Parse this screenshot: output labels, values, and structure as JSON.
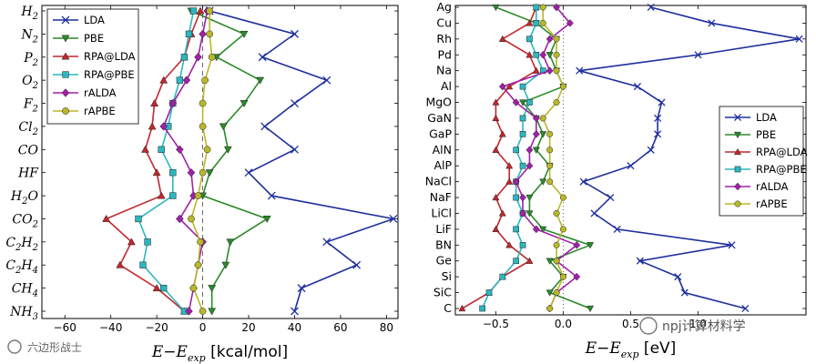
{
  "watermarks": {
    "left": "六边形战士",
    "right": "npj计算材料学"
  },
  "chart_data": [
    {
      "type": "line",
      "xlabel_main": "E−E",
      "xlabel_sub": "exp",
      "xlabel_unit": " [kcal/mol]",
      "xlim": [
        -70,
        85
      ],
      "xticks": [
        -60,
        -40,
        -20,
        0,
        20,
        40,
        60,
        80
      ],
      "xtick_labels": [
        "−60",
        "−40",
        "−20",
        "0",
        "20",
        "40",
        "60",
        "80"
      ],
      "legend_position": "top-left",
      "categories": [
        "H2",
        "N2",
        "P2",
        "O2",
        "F2",
        "Cl2",
        "CO",
        "HF",
        "H2O",
        "CO2",
        "C2H2",
        "C2H4",
        "CH4",
        "NH3"
      ],
      "category_labels": [
        {
          "base": "H",
          "sub": "2"
        },
        {
          "base": "N",
          "sub": "2"
        },
        {
          "base": "P",
          "sub": "2"
        },
        {
          "base": "O",
          "sub": "2"
        },
        {
          "base": "F",
          "sub": "2"
        },
        {
          "base": "Cl",
          "sub": "2"
        },
        {
          "base": "CO",
          "sub": ""
        },
        {
          "base": "HF",
          "sub": ""
        },
        {
          "base": "H",
          "sub": "2",
          "tail": "O"
        },
        {
          "base": "CO",
          "sub": "2"
        },
        {
          "base": "C",
          "sub": "2",
          "tail": "H",
          "sub2": "2"
        },
        {
          "base": "C",
          "sub": "2",
          "tail": "H",
          "sub2": "4"
        },
        {
          "base": "CH",
          "sub": "4"
        },
        {
          "base": "NH",
          "sub": "3"
        }
      ],
      "series": [
        {
          "name": "LDA",
          "color": "#1f2f9e",
          "marker": "x",
          "values": [
            3,
            40,
            26,
            54,
            40,
            27,
            40,
            20,
            30,
            83,
            54,
            67,
            43,
            40
          ]
        },
        {
          "name": "PBE",
          "color": "#2a8a2a",
          "marker": "tri_down",
          "values": [
            -5,
            18,
            6,
            25,
            18,
            9,
            11,
            3,
            0,
            28,
            12,
            10,
            4,
            4
          ]
        },
        {
          "name": "RPA@LDA",
          "color": "#c0282d",
          "marker": "tri_up",
          "values": [
            -1,
            -5,
            -8,
            -17,
            -21,
            -22,
            -25,
            -20,
            -18,
            -42,
            -31,
            -36,
            -20,
            -8
          ]
        },
        {
          "name": "RPA@PBE",
          "color": "#2cb7bf",
          "marker": "square",
          "values": [
            -4,
            -6,
            -8,
            -10,
            -13,
            -15,
            -18,
            -13,
            -13,
            -28,
            -24,
            -26,
            -17,
            -8
          ]
        },
        {
          "name": "rALDA",
          "color": "#a020a8",
          "marker": "diamond",
          "values": [
            2,
            0,
            -2,
            -7,
            -13,
            -17,
            -10,
            -5,
            -4,
            -10,
            0,
            -2,
            -4,
            -6
          ]
        },
        {
          "name": "rAPBE",
          "color": "#b8b82a",
          "marker": "circle",
          "values": [
            3,
            3,
            4,
            1,
            0,
            0,
            2,
            0,
            -2,
            -5,
            -1,
            -2,
            -4,
            0
          ]
        }
      ]
    },
    {
      "type": "line",
      "xlabel_main": "E−E",
      "xlabel_sub": "exp",
      "xlabel_unit": " [eV]",
      "xlim": [
        -0.8,
        1.8
      ],
      "xticks": [
        -0.5,
        0.0,
        0.5,
        1.0
      ],
      "xtick_labels": [
        "−0.5",
        "0.0",
        "0.5",
        "1.0"
      ],
      "legend_position": "center-right",
      "categories": [
        "Ag",
        "Cu",
        "Rh",
        "Pd",
        "Na",
        "Al",
        "MgO",
        "GaN",
        "GaP",
        "AlN",
        "AlP",
        "NaCl",
        "NaF",
        "LiCl",
        "LiF",
        "BN",
        "Ge",
        "Si",
        "SiC",
        "C"
      ],
      "series": [
        {
          "name": "LDA",
          "color": "#1f2f9e",
          "marker": "x",
          "values": [
            0.65,
            1.1,
            1.75,
            1.0,
            0.12,
            0.55,
            0.73,
            0.7,
            0.7,
            0.65,
            0.5,
            0.15,
            0.35,
            0.23,
            0.4,
            1.25,
            0.57,
            0.85,
            0.9,
            1.35
          ]
        },
        {
          "name": "PBE",
          "color": "#2a8a2a",
          "marker": "tri_down",
          "values": [
            -0.5,
            -0.2,
            -0.05,
            -0.1,
            -0.05,
            0.0,
            -0.3,
            -0.2,
            -0.15,
            -0.2,
            -0.1,
            -0.15,
            -0.25,
            -0.25,
            -0.15,
            0.2,
            -0.1,
            0.0,
            -0.1,
            0.2
          ]
        },
        {
          "name": "RPA@LDA",
          "color": "#c0282d",
          "marker": "tri_up",
          "values": [
            -0.2,
            -0.25,
            -0.45,
            -0.25,
            -0.2,
            -0.4,
            -0.5,
            -0.5,
            -0.45,
            -0.5,
            -0.4,
            -0.4,
            -0.5,
            -0.45,
            -0.5,
            -0.4,
            -0.25,
            -0.45,
            -0.55,
            -0.75
          ]
        },
        {
          "name": "RPA@PBE",
          "color": "#2cb7bf",
          "marker": "square",
          "values": [
            -0.2,
            -0.2,
            -0.25,
            -0.2,
            -0.15,
            -0.3,
            -0.25,
            -0.3,
            -0.3,
            -0.35,
            -0.3,
            -0.35,
            -0.35,
            -0.3,
            -0.35,
            -0.3,
            -0.35,
            -0.45,
            -0.55,
            -0.6
          ]
        },
        {
          "name": "rALDA",
          "color": "#a020a8",
          "marker": "diamond",
          "values": [
            -0.05,
            0.05,
            -0.1,
            -0.15,
            -0.1,
            -0.45,
            -0.35,
            -0.2,
            -0.2,
            -0.25,
            -0.25,
            -0.35,
            -0.3,
            -0.3,
            -0.2,
            0.1,
            -0.05,
            0.1,
            -0.05,
            -0.1
          ]
        },
        {
          "name": "rAPBE",
          "color": "#b8b82a",
          "marker": "circle",
          "values": [
            -0.15,
            -0.15,
            -0.05,
            -0.05,
            -0.05,
            0.0,
            -0.05,
            -0.15,
            -0.1,
            -0.1,
            -0.1,
            -0.1,
            0.0,
            -0.05,
            0.0,
            -0.05,
            -0.05,
            0.0,
            -0.05,
            -0.1
          ]
        }
      ]
    }
  ]
}
